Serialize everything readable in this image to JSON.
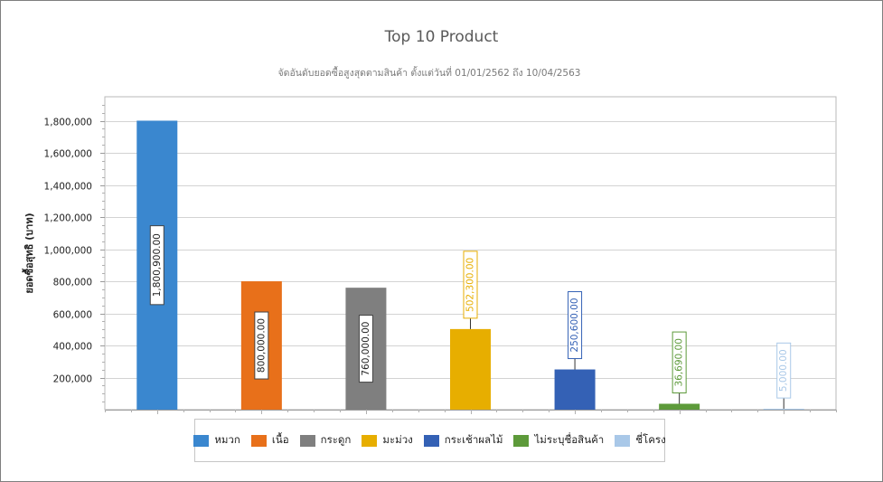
{
  "chart_data": {
    "type": "bar",
    "title": "Top 10 Product",
    "subtitle": "จัดอันดับยอดซื้อสูงสุดตามสินค้า ตั้งแต่วันที่ 01/01/2562 ถึง 10/04/2563",
    "xlabel": "",
    "ylabel": "ยอดซื้อสุทธิ (บาท)",
    "ylim": [
      0,
      1950000
    ],
    "yticks": [
      200000,
      400000,
      600000,
      800000,
      1000000,
      1200000,
      1400000,
      1600000,
      1800000
    ],
    "ytick_labels": [
      "200,000",
      "400,000",
      "600,000",
      "800,000",
      "1,000,000",
      "1,200,000",
      "1,400,000",
      "1,600,000",
      "1,800,000"
    ],
    "grid": true,
    "legend_position": "bottom",
    "categories": [
      "หมวก",
      "เนื้อ",
      "กระดูก",
      "มะม่วง",
      "กระเช้าผลไม้",
      "ไม่ระบุชื่อสินค้า",
      "ชี่โครง"
    ],
    "values": [
      1800900,
      800000,
      760000,
      502300,
      250600,
      36690,
      5000
    ],
    "data_labels": [
      "1,800,900.00",
      "800,000.00",
      "760,000.00",
      "502,300.00",
      "250,600.00",
      "36,690.00",
      "5,000.00"
    ],
    "colors": [
      "#3a87cf",
      "#e8701a",
      "#7f7f7f",
      "#e7ae00",
      "#3461b5",
      "#5d9a3a",
      "#a9c8e8"
    ]
  }
}
